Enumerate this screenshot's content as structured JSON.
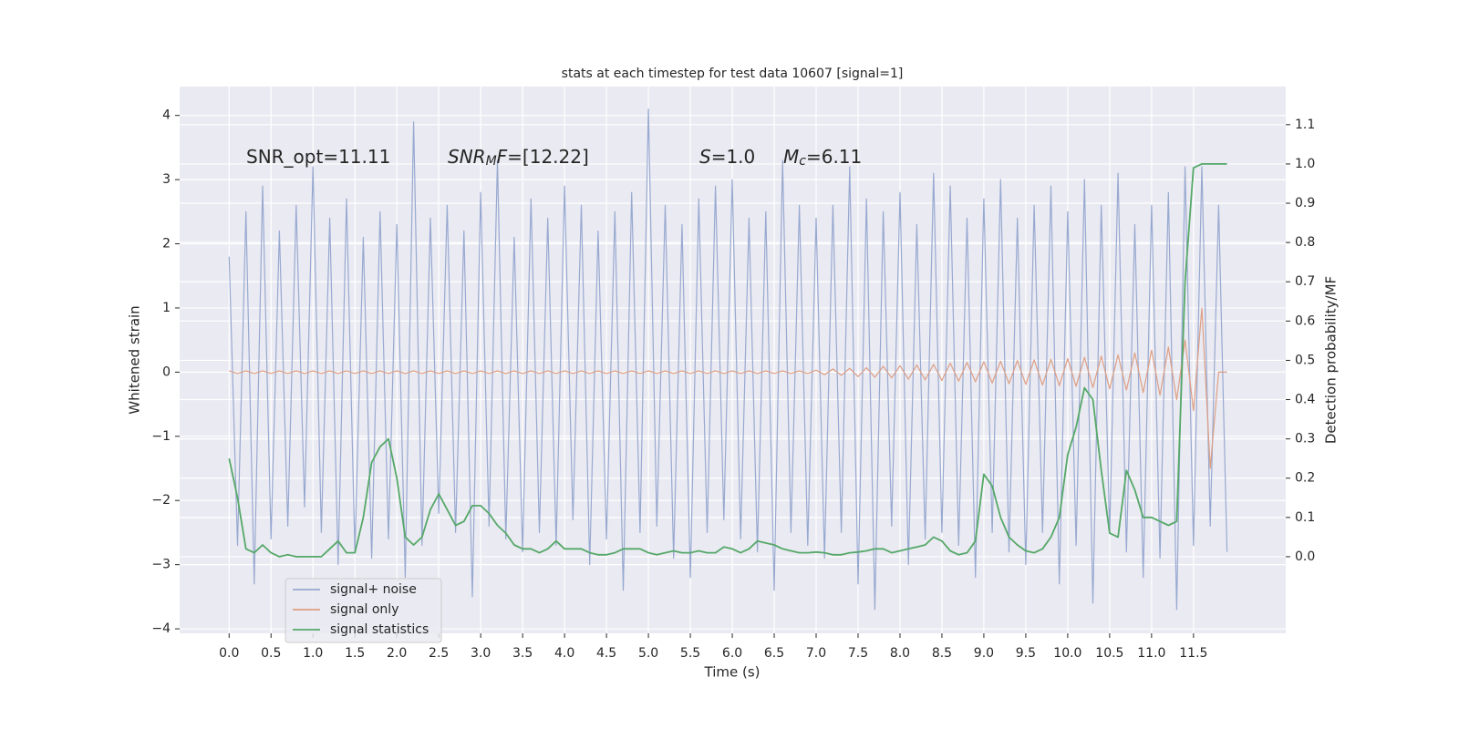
{
  "chart_data": {
    "type": "line",
    "title": "stats at each timestep for test data 10607 [signal=1]",
    "xlabel": "Time (s)",
    "ylabel": "Whitened strain",
    "y2label": "Detection probability/MF",
    "annotations": [
      [
        {
          "text": "SNR_opt=11.11"
        }
      ],
      [
        {
          "text": "SNR",
          "italic": true
        },
        {
          "text": "M",
          "italic": true,
          "sub": true
        },
        {
          "text": "F",
          "italic": true
        },
        {
          "text": "=[12.22]"
        }
      ],
      [
        {
          "text": "S",
          "italic": true
        },
        {
          "text": "=1.0"
        }
      ],
      [
        {
          "text": "M",
          "italic": true
        },
        {
          "text": "c",
          "italic": true,
          "sub": true
        },
        {
          "text": "=6.11"
        }
      ]
    ],
    "x": [
      0,
      0.1,
      0.2,
      0.3,
      0.4,
      0.5,
      0.6,
      0.7,
      0.8,
      0.9,
      1,
      1.1,
      1.2,
      1.3,
      1.4,
      1.5,
      1.6,
      1.7,
      1.8,
      1.9,
      2,
      2.1,
      2.2,
      2.3,
      2.4,
      2.5,
      2.6,
      2.7,
      2.8,
      2.9,
      3,
      3.1,
      3.2,
      3.3,
      3.4,
      3.5,
      3.6,
      3.7,
      3.8,
      3.9,
      4,
      4.1,
      4.2,
      4.3,
      4.4,
      4.5,
      4.6,
      4.7,
      4.8,
      4.9,
      5,
      5.1,
      5.2,
      5.3,
      5.4,
      5.5,
      5.6,
      5.7,
      5.8,
      5.9,
      6,
      6.1,
      6.2,
      6.3,
      6.4,
      6.5,
      6.6,
      6.7,
      6.8,
      6.9,
      7,
      7.1,
      7.2,
      7.3,
      7.4,
      7.5,
      7.6,
      7.7,
      7.8,
      7.9,
      8,
      8.1,
      8.2,
      8.3,
      8.4,
      8.5,
      8.6,
      8.7,
      8.8,
      8.9,
      9,
      9.1,
      9.2,
      9.3,
      9.4,
      9.5,
      9.6,
      9.7,
      9.8,
      9.9,
      10,
      10.1,
      10.2,
      10.3,
      10.4,
      10.5,
      10.6,
      10.7,
      10.8,
      10.9,
      11,
      11.1,
      11.2,
      11.3,
      11.4,
      11.5,
      11.6,
      11.7,
      11.8,
      11.9
    ],
    "series": [
      {
        "name": "signal+ noise",
        "color": "#98a9d0",
        "values": [
          1.8,
          -2.7,
          2.5,
          -3.3,
          2.9,
          -2.6,
          2.2,
          -2.4,
          2.6,
          -2.1,
          3.2,
          -2.5,
          2.4,
          -3.0,
          2.7,
          -2.8,
          2.1,
          -2.9,
          2.5,
          -2.6,
          2.3,
          -3.2,
          3.9,
          -2.7,
          2.4,
          -2.2,
          2.6,
          -2.5,
          2.2,
          -3.5,
          2.8,
          -2.4,
          3.3,
          -2.6,
          2.1,
          -2.8,
          2.7,
          -2.5,
          2.4,
          -2.7,
          2.9,
          -2.3,
          2.6,
          -3.0,
          2.2,
          -2.6,
          2.5,
          -3.4,
          2.8,
          -2.5,
          4.1,
          -2.4,
          2.6,
          -2.9,
          2.3,
          -3.2,
          2.7,
          -2.5,
          2.9,
          -2.3,
          3.0,
          -2.6,
          2.4,
          -2.8,
          2.5,
          -3.4,
          3.3,
          -2.5,
          2.6,
          -2.7,
          2.4,
          -2.9,
          2.6,
          -2.5,
          3.2,
          -3.3,
          2.7,
          -3.7,
          2.5,
          -2.4,
          2.8,
          -3.0,
          2.3,
          -2.6,
          3.1,
          -2.5,
          2.9,
          -2.7,
          2.4,
          -3.2,
          2.7,
          -2.5,
          3.0,
          -2.8,
          2.4,
          -3.0,
          2.6,
          -2.5,
          2.9,
          -3.3,
          2.5,
          -2.7,
          3.0,
          -3.6,
          2.6,
          -2.5,
          3.1,
          -2.8,
          2.3,
          -3.2,
          2.6,
          -2.9,
          2.8,
          -3.7,
          3.2,
          -2.7,
          3.2,
          -2.4,
          2.6,
          -2.8
        ]
      },
      {
        "name": "signal only",
        "color": "#dd9f85",
        "values": [
          0.02,
          -0.02,
          0.02,
          -0.02,
          0.02,
          -0.02,
          0.02,
          -0.02,
          0.02,
          -0.02,
          0.02,
          -0.02,
          0.02,
          -0.02,
          0.02,
          -0.02,
          0.02,
          -0.02,
          0.02,
          -0.02,
          0.02,
          -0.02,
          0.02,
          -0.02,
          0.02,
          -0.02,
          0.02,
          -0.02,
          0.02,
          -0.02,
          0.02,
          -0.02,
          0.02,
          -0.02,
          0.02,
          -0.02,
          0.02,
          -0.02,
          0.02,
          -0.02,
          0.02,
          -0.02,
          0.02,
          -0.02,
          0.02,
          -0.02,
          0.02,
          -0.02,
          0.02,
          -0.02,
          0.02,
          -0.02,
          0.02,
          -0.02,
          0.02,
          -0.02,
          0.02,
          -0.02,
          0.02,
          -0.02,
          0.02,
          -0.02,
          0.02,
          -0.02,
          0.02,
          -0.02,
          0.02,
          -0.02,
          0.02,
          -0.02,
          0.03,
          -0.04,
          0.05,
          -0.05,
          0.06,
          -0.07,
          0.07,
          -0.08,
          0.09,
          -0.09,
          0.1,
          -0.11,
          0.11,
          -0.12,
          0.12,
          -0.13,
          0.14,
          -0.14,
          0.15,
          -0.15,
          0.16,
          -0.17,
          0.17,
          -0.18,
          0.18,
          -0.19,
          0.19,
          -0.2,
          0.2,
          -0.21,
          0.21,
          -0.22,
          0.23,
          -0.24,
          0.25,
          -0.26,
          0.27,
          -0.28,
          0.3,
          -0.32,
          0.34,
          -0.36,
          0.39,
          -0.43,
          0.5,
          -0.6,
          1.0,
          -1.5,
          0,
          0
        ]
      },
      {
        "name": "signal statistics",
        "color": "#55a868",
        "axis": "y2",
        "values": [
          0.25,
          0.15,
          0.02,
          0.01,
          0.03,
          0.01,
          0,
          0.005,
          0,
          0,
          0,
          0,
          0.02,
          0.04,
          0.01,
          0.01,
          0.1,
          0.24,
          0.28,
          0.3,
          0.2,
          0.05,
          0.03,
          0.05,
          0.12,
          0.16,
          0.12,
          0.08,
          0.09,
          0.13,
          0.13,
          0.11,
          0.08,
          0.06,
          0.03,
          0.02,
          0.02,
          0.01,
          0.02,
          0.04,
          0.02,
          0.02,
          0.02,
          0.01,
          0.005,
          0.005,
          0.01,
          0.02,
          0.02,
          0.02,
          0.01,
          0.005,
          0.01,
          0.015,
          0.01,
          0.01,
          0.015,
          0.01,
          0.01,
          0.025,
          0.02,
          0.01,
          0.02,
          0.04,
          0.035,
          0.03,
          0.02,
          0.015,
          0.01,
          0.01,
          0.012,
          0.01,
          0.005,
          0.005,
          0.01,
          0.012,
          0.015,
          0.02,
          0.02,
          0.01,
          0.015,
          0.02,
          0.025,
          0.03,
          0.05,
          0.04,
          0.015,
          0.005,
          0.01,
          0.04,
          0.21,
          0.18,
          0.1,
          0.05,
          0.03,
          0.015,
          0.01,
          0.02,
          0.05,
          0.1,
          0.26,
          0.33,
          0.43,
          0.4,
          0.22,
          0.06,
          0.05,
          0.22,
          0.17,
          0.1,
          0.1,
          0.09,
          0.08,
          0.09,
          0.7,
          0.99,
          1.0,
          1.0,
          1.0,
          1.0
        ]
      }
    ],
    "xlim": [
      -0.59,
      12.6
    ],
    "ylim": [
      -4.07,
      4.45
    ],
    "y2lim": [
      -0.195,
      1.197
    ],
    "xticks": [
      {
        "value": 0,
        "label": "0.0"
      },
      0.5,
      {
        "value": 1,
        "label": "1.0"
      },
      1.5,
      {
        "value": 2,
        "label": "2.0"
      },
      2.5,
      {
        "value": 3,
        "label": "3.0"
      },
      3.5,
      {
        "value": 4,
        "label": "4.0"
      },
      4.5,
      {
        "value": 5,
        "label": "5.0"
      },
      5.5,
      {
        "value": 6,
        "label": "6.0"
      },
      6.5,
      {
        "value": 7,
        "label": "7.0"
      },
      7.5,
      {
        "value": 8,
        "label": "8.0"
      },
      8.5,
      {
        "value": 9,
        "label": "9.0"
      },
      9.5,
      {
        "value": 10,
        "label": "10.0"
      },
      10.5,
      {
        "value": 11,
        "label": "11.0"
      },
      11.5
    ],
    "yticks": [
      {
        "value": -4,
        "label": "−4"
      },
      {
        "value": -3,
        "label": "−3"
      },
      {
        "value": -2,
        "label": "−2"
      },
      {
        "value": -1,
        "label": "−1"
      },
      0,
      1,
      2,
      3,
      4
    ],
    "y2ticks": [
      {
        "value": 0,
        "label": "0.0"
      },
      0.1,
      0.2,
      0.3,
      0.4,
      0.5,
      0.6,
      0.7,
      0.8,
      0.9,
      {
        "value": 1,
        "label": "1.0"
      },
      1.1
    ],
    "grid": true,
    "legend": "lower left"
  }
}
